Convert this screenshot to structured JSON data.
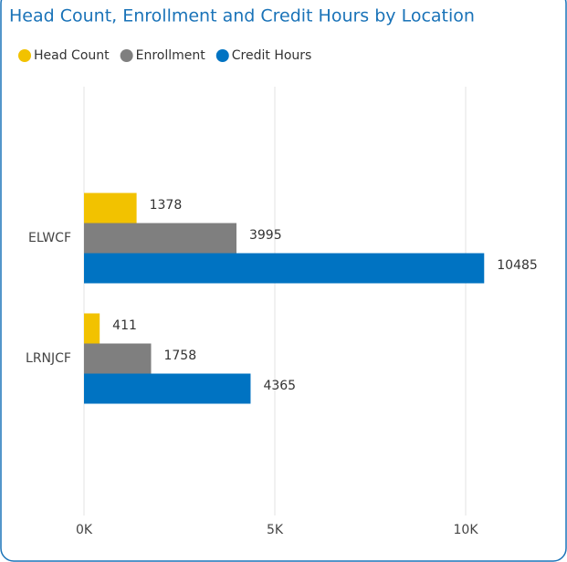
{
  "chart_data": {
    "type": "hbar",
    "title": "Head Count, Enrollment and Credit Hours by Location",
    "categories": [
      "ELWCF",
      "LRNJCF"
    ],
    "series": [
      {
        "name": "Head Count",
        "color": "#f2c200",
        "values": [
          1378,
          411
        ]
      },
      {
        "name": "Enrollment",
        "color": "#7f7f7f",
        "values": [
          3995,
          1758
        ]
      },
      {
        "name": "Credit Hours",
        "color": "#0073c2",
        "values": [
          10485,
          4365
        ]
      }
    ],
    "xlim": [
      0,
      11000
    ],
    "xticks": [
      {
        "value": 0,
        "label": "0K"
      },
      {
        "value": 5000,
        "label": "5K"
      },
      {
        "value": 10000,
        "label": "10K"
      }
    ],
    "grid": true
  }
}
